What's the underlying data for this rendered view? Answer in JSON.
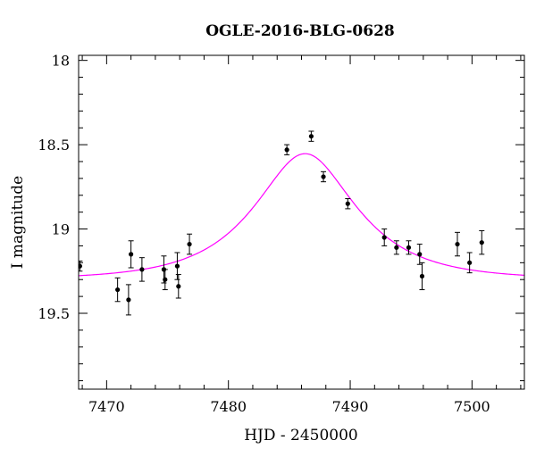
{
  "chart_data": {
    "type": "scatter",
    "title": "OGLE-2016-BLG-0628",
    "xlabel": "HJD - 2450000",
    "ylabel": "I magnitude",
    "xlim": [
      7467.7,
      7504.3
    ],
    "ylim": [
      19.95,
      17.97
    ],
    "y_inverted": true,
    "grid": false,
    "x_major_ticks": [
      7470,
      7480,
      7490,
      7500
    ],
    "x_tick_labels": [
      "7470",
      "7480",
      "7490",
      "7500"
    ],
    "x_minor_step": 2,
    "y_major_ticks": [
      18.0,
      18.5,
      19.0,
      19.5
    ],
    "y_tick_labels": [
      "18",
      "18.5",
      "19",
      "19.5"
    ],
    "y_minor_step": 0.1,
    "colors": {
      "model": "#ff00ff",
      "points": "#000000"
    },
    "model": {
      "type": "microlensing-pspl",
      "t0": 7486.3,
      "tE": 6.8,
      "u0": 0.56,
      "baseline": 19.3
    },
    "points": [
      {
        "x": 7467.8,
        "y": 19.22,
        "err": 0.03
      },
      {
        "x": 7470.9,
        "y": 19.36,
        "err": 0.07
      },
      {
        "x": 7471.8,
        "y": 19.42,
        "err": 0.09
      },
      {
        "x": 7472.0,
        "y": 19.15,
        "err": 0.08
      },
      {
        "x": 7472.9,
        "y": 19.24,
        "err": 0.07
      },
      {
        "x": 7474.7,
        "y": 19.24,
        "err": 0.08
      },
      {
        "x": 7474.8,
        "y": 19.3,
        "err": 0.06
      },
      {
        "x": 7475.8,
        "y": 19.22,
        "err": 0.08
      },
      {
        "x": 7475.9,
        "y": 19.34,
        "err": 0.07
      },
      {
        "x": 7476.8,
        "y": 19.09,
        "err": 0.06
      },
      {
        "x": 7484.8,
        "y": 18.53,
        "err": 0.03
      },
      {
        "x": 7486.8,
        "y": 18.45,
        "err": 0.03
      },
      {
        "x": 7487.8,
        "y": 18.69,
        "err": 0.03
      },
      {
        "x": 7489.8,
        "y": 18.85,
        "err": 0.03
      },
      {
        "x": 7492.8,
        "y": 19.05,
        "err": 0.05
      },
      {
        "x": 7493.8,
        "y": 19.11,
        "err": 0.04
      },
      {
        "x": 7494.8,
        "y": 19.11,
        "err": 0.04
      },
      {
        "x": 7495.7,
        "y": 19.15,
        "err": 0.06
      },
      {
        "x": 7495.9,
        "y": 19.28,
        "err": 0.08
      },
      {
        "x": 7498.8,
        "y": 19.09,
        "err": 0.07
      },
      {
        "x": 7499.8,
        "y": 19.2,
        "err": 0.06
      },
      {
        "x": 7500.8,
        "y": 19.08,
        "err": 0.07
      }
    ]
  }
}
